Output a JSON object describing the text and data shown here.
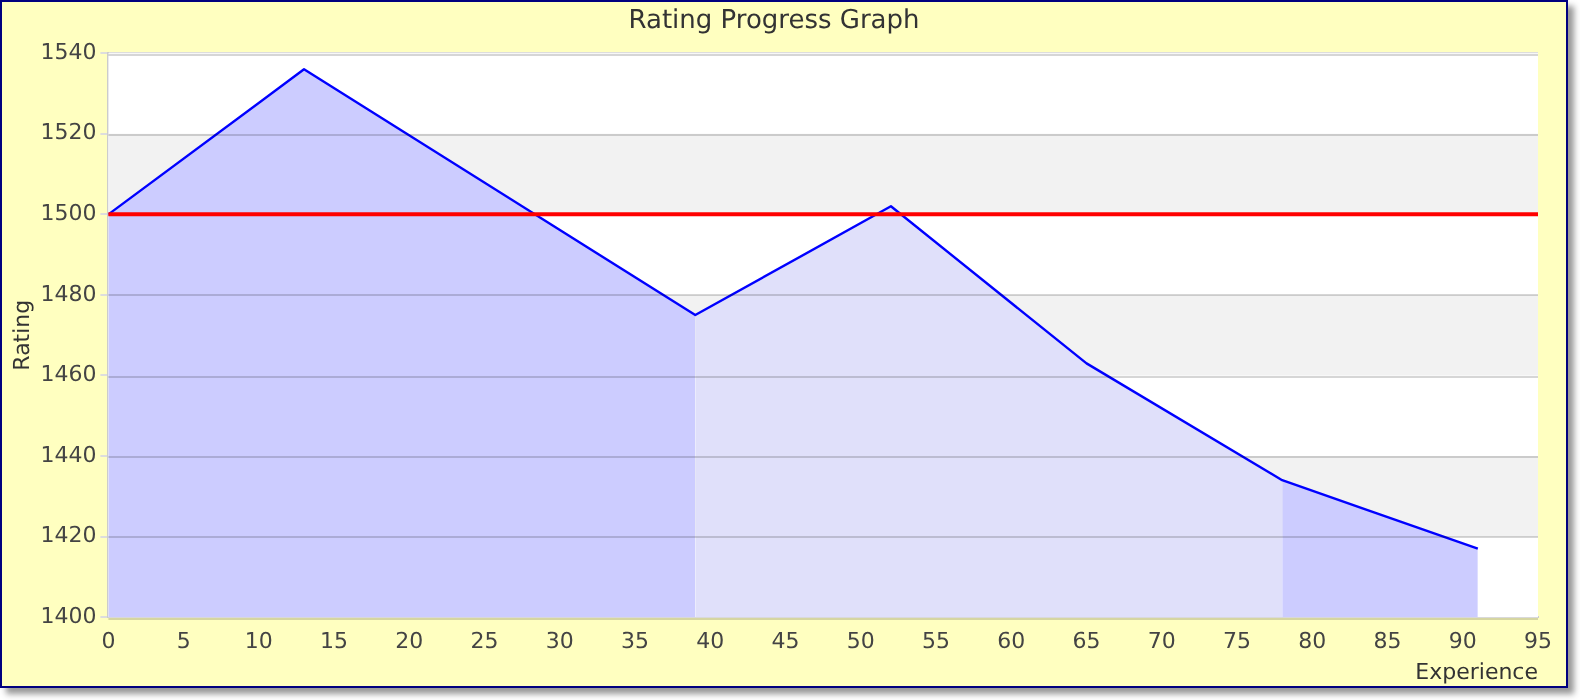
{
  "chart_data": {
    "type": "area",
    "title": "Rating Progress Graph",
    "xlabel": "Experience",
    "ylabel": "Rating",
    "xlim": [
      0,
      95
    ],
    "xticks": [
      0,
      5,
      10,
      15,
      20,
      25,
      30,
      35,
      40,
      45,
      50,
      55,
      60,
      65,
      70,
      75,
      80,
      85,
      90,
      95
    ],
    "ylim": [
      1400,
      1540
    ],
    "yticks": [
      1400,
      1420,
      1440,
      1460,
      1480,
      1500,
      1520,
      1540
    ],
    "series": [
      {
        "x": [
          0,
          13,
          39
        ],
        "values": [
          1500,
          1536,
          1475
        ],
        "color": "#ccccff"
      },
      {
        "x": [
          39,
          52,
          65,
          78
        ],
        "values": [
          1475,
          1502,
          1463,
          1434
        ],
        "color": "#e0e0fa"
      },
      {
        "x": [
          78,
          91
        ],
        "values": [
          1434,
          1417
        ],
        "color": "#ccccff"
      },
      {
        "type": "line",
        "x": [
          0,
          13,
          39,
          52,
          65,
          78,
          91
        ],
        "values": [
          1500,
          1536,
          1475,
          1502,
          1463,
          1434,
          1417
        ],
        "color": "#0000ff"
      }
    ],
    "ref_lines": [
      {
        "axis": "y",
        "value": 1500,
        "color": "#ff0000"
      }
    ],
    "grid": "y",
    "legend": false
  }
}
